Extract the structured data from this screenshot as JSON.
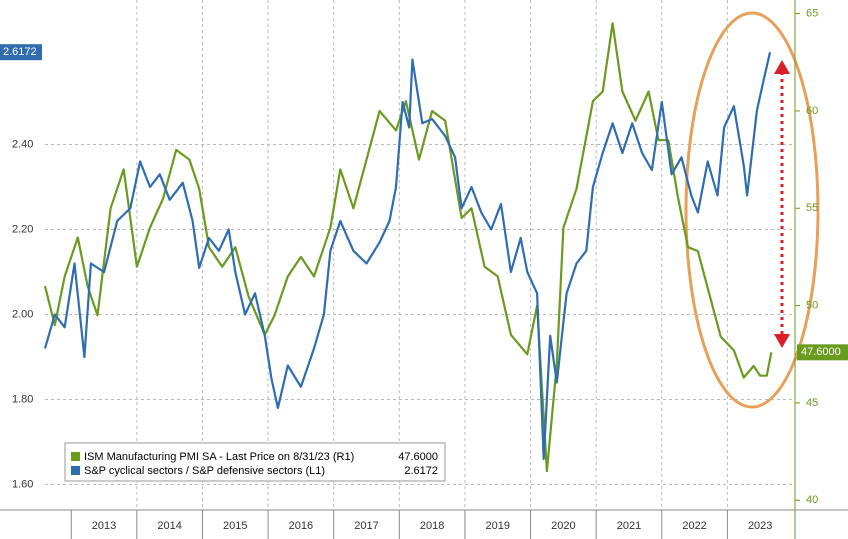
{
  "chart_data": {
    "type": "line",
    "xlim": [
      2012.6,
      2024.0
    ],
    "xticks": [
      {
        "value": 2013.5,
        "label": "2013"
      },
      {
        "value": 2014.5,
        "label": "2014"
      },
      {
        "value": 2015.5,
        "label": "2015"
      },
      {
        "value": 2016.5,
        "label": "2016"
      },
      {
        "value": 2017.5,
        "label": "2017"
      },
      {
        "value": 2018.5,
        "label": "2018"
      },
      {
        "value": 2019.5,
        "label": "2019"
      },
      {
        "value": 2020.5,
        "label": "2020"
      },
      {
        "value": 2021.5,
        "label": "2021"
      },
      {
        "value": 2022.5,
        "label": "2022"
      },
      {
        "value": 2023.5,
        "label": "2023"
      }
    ],
    "ylim": [
      1.54,
      2.74
    ],
    "yticks": [
      {
        "value": 1.6,
        "label": "1.60"
      },
      {
        "value": 1.8,
        "label": "1.80"
      },
      {
        "value": 2.0,
        "label": "2.00"
      },
      {
        "value": 2.2,
        "label": "2.20"
      },
      {
        "value": 2.4,
        "label": "2.40"
      }
    ],
    "y2lim": [
      39.5,
      65.7
    ],
    "y2ticks": [
      40,
      45,
      50,
      55,
      60,
      65
    ],
    "grid": true,
    "legend": "bottom-left",
    "series": [
      {
        "name": "ISM Manufacturing PMI SA - Last Price on 8/31/23 (R1)",
        "last_label": "47.6000",
        "color": "#6a9a1f",
        "axis": "y2",
        "x": [
          2012.6,
          2012.75,
          2012.9,
          2013.1,
          2013.25,
          2013.4,
          2013.6,
          2013.8,
          2014.0,
          2014.2,
          2014.4,
          2014.6,
          2014.8,
          2014.95,
          2015.1,
          2015.3,
          2015.5,
          2015.7,
          2015.95,
          2016.1,
          2016.3,
          2016.5,
          2016.7,
          2016.95,
          2017.1,
          2017.3,
          2017.5,
          2017.7,
          2017.95,
          2018.1,
          2018.3,
          2018.5,
          2018.7,
          2018.95,
          2019.1,
          2019.3,
          2019.5,
          2019.7,
          2019.95,
          2020.1,
          2020.25,
          2020.4,
          2020.5,
          2020.7,
          2020.95,
          2021.1,
          2021.25,
          2021.4,
          2021.6,
          2021.8,
          2021.95,
          2022.1,
          2022.25,
          2022.4,
          2022.55,
          2022.7,
          2022.9,
          2023.1,
          2023.25,
          2023.4,
          2023.5,
          2023.6,
          2023.67
        ],
        "values": [
          51,
          49,
          51.5,
          53.5,
          51,
          49.5,
          55,
          57,
          52,
          54,
          55.5,
          58,
          57.5,
          56,
          53,
          52,
          53,
          50.5,
          48.5,
          49.5,
          51.5,
          52.5,
          51.5,
          54,
          57,
          55,
          57.5,
          60,
          59,
          60.5,
          57.5,
          60,
          59.5,
          54.5,
          55,
          52,
          51.5,
          48.5,
          47.5,
          50,
          41.5,
          47,
          54,
          56,
          60.5,
          61,
          64.5,
          61,
          59.5,
          61,
          58.5,
          58.5,
          55.5,
          53,
          52.8,
          50.9,
          48.4,
          47.7,
          46.3,
          46.9,
          46.4,
          46.4,
          47.6
        ]
      },
      {
        "name": "S&P cyclical sectors / S&P defensive sectors (L1)",
        "last_label": "2.6172",
        "color": "#2f6db0",
        "axis": "y",
        "x": [
          2012.6,
          2012.75,
          2012.9,
          2013.05,
          2013.2,
          2013.3,
          2013.5,
          2013.7,
          2013.9,
          2014.05,
          2014.2,
          2014.35,
          2014.5,
          2014.7,
          2014.85,
          2014.95,
          2015.1,
          2015.25,
          2015.4,
          2015.5,
          2015.65,
          2015.8,
          2015.95,
          2016.05,
          2016.15,
          2016.3,
          2016.5,
          2016.7,
          2016.85,
          2016.95,
          2017.1,
          2017.3,
          2017.5,
          2017.7,
          2017.85,
          2017.95,
          2018.05,
          2018.15,
          2018.2,
          2018.35,
          2018.5,
          2018.7,
          2018.85,
          2018.95,
          2019.1,
          2019.25,
          2019.4,
          2019.55,
          2019.7,
          2019.85,
          2019.95,
          2020.1,
          2020.2,
          2020.3,
          2020.4,
          2020.55,
          2020.7,
          2020.85,
          2020.95,
          2021.1,
          2021.25,
          2021.4,
          2021.55,
          2021.7,
          2021.85,
          2022.0,
          2022.15,
          2022.3,
          2022.45,
          2022.55,
          2022.7,
          2022.85,
          2022.95,
          2023.1,
          2023.25,
          2023.3,
          2023.45,
          2023.55,
          2023.65
        ],
        "values": [
          1.92,
          2.0,
          1.97,
          2.12,
          1.9,
          2.12,
          2.1,
          2.22,
          2.25,
          2.36,
          2.3,
          2.33,
          2.27,
          2.31,
          2.22,
          2.11,
          2.18,
          2.15,
          2.2,
          2.1,
          2.0,
          2.05,
          1.95,
          1.85,
          1.78,
          1.88,
          1.83,
          1.92,
          2.0,
          2.15,
          2.22,
          2.15,
          2.12,
          2.17,
          2.22,
          2.3,
          2.5,
          2.44,
          2.6,
          2.45,
          2.46,
          2.42,
          2.37,
          2.25,
          2.3,
          2.24,
          2.2,
          2.26,
          2.1,
          2.18,
          2.1,
          2.05,
          1.66,
          1.95,
          1.84,
          2.05,
          2.12,
          2.15,
          2.3,
          2.38,
          2.45,
          2.38,
          2.45,
          2.38,
          2.34,
          2.5,
          2.33,
          2.37,
          2.28,
          2.24,
          2.36,
          2.28,
          2.44,
          2.49,
          2.35,
          2.28,
          2.48,
          2.55,
          2.6172
        ]
      }
    ]
  }
}
